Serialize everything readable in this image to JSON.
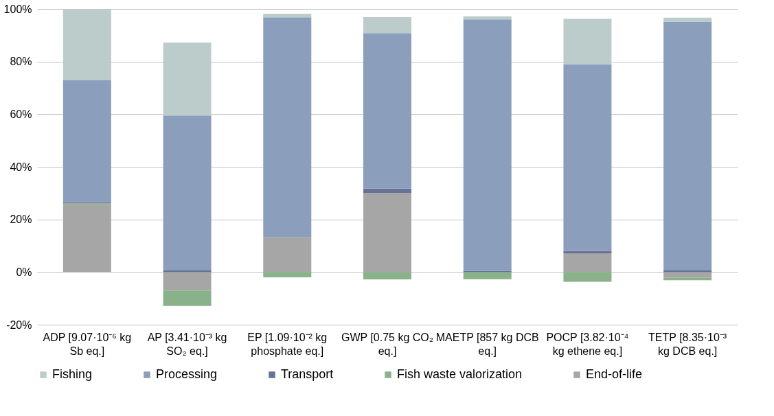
{
  "chart_data": {
    "type": "bar",
    "stacked": true,
    "categories": [
      "ADP [9.07·10⁻⁶ kg Sb eq.]",
      "AP [3.41·10⁻³ kg SO₂ eq.]",
      "EP [1.09·10⁻² kg phosphate eq.]",
      "GWP [0.75 kg CO₂ eq.]",
      "MAETP [857 kg DCB eq.]",
      "POCP [3.82·10⁻⁴ kg ethene eq.]",
      "TETP [8.35·10⁻³ kg DCB eq.]"
    ],
    "series": [
      {
        "name": "End-of-life",
        "color": "#a6a6a6",
        "values": [
          25.6,
          -7.0,
          13.2,
          30.0,
          0,
          7.1,
          -2.2
        ]
      },
      {
        "name": "Fish waste valorization",
        "color": "#8ab28a",
        "values": [
          0.5,
          -5.9,
          -2.0,
          -2.8,
          -2.7,
          -3.7,
          -0.9
        ]
      },
      {
        "name": "Transport",
        "color": "#687198",
        "values": [
          0.4,
          0.6,
          0,
          1.7,
          0.5,
          0.9,
          0.6
        ]
      },
      {
        "name": "Processing",
        "color": "#8b9ebb",
        "values": [
          46.4,
          58.9,
          83.6,
          59.1,
          95.5,
          71.0,
          94.6
        ]
      },
      {
        "name": "Fishing",
        "color": "#bccccb",
        "values": [
          27.1,
          27.7,
          1.4,
          6.1,
          1.2,
          17.2,
          1.5
        ]
      }
    ],
    "ylim": [
      -20,
      100
    ],
    "yticks": [
      {
        "value": -20,
        "label": "-20%"
      },
      {
        "value": 0,
        "label": "0%"
      },
      {
        "value": 20,
        "label": "20%"
      },
      {
        "value": 40,
        "label": "40%"
      },
      {
        "value": 60,
        "label": "60%"
      },
      {
        "value": 80,
        "label": "80%"
      },
      {
        "value": 100,
        "label": "100%"
      }
    ],
    "grid": "y",
    "legend": "bottom"
  }
}
